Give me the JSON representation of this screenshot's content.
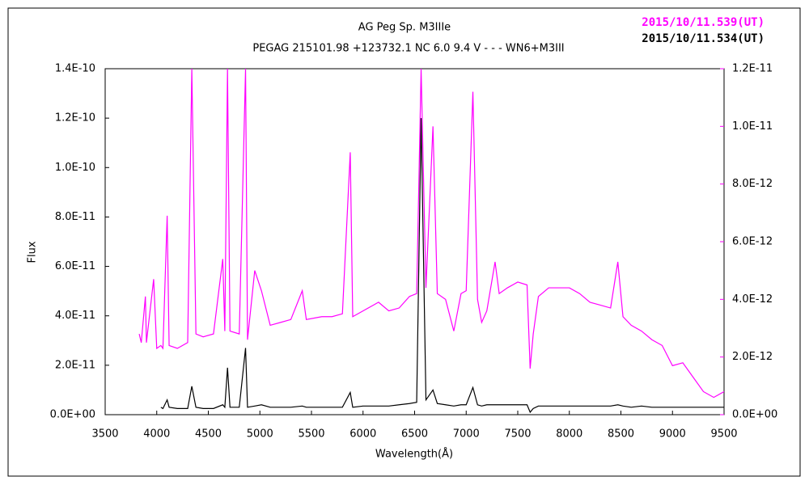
{
  "chart_data": {
    "type": "line",
    "title": "AG Peg    Sp. M3IIIe",
    "subtitle": "PEGAG 215101.98 +123732.1 NC 6.0 9.4 V - - - WN6+M3III",
    "x_label": "Wavelength(Å)",
    "y_label": "Flux",
    "xlim": [
      3500,
      9500
    ],
    "xticks": [
      3500,
      4000,
      4500,
      5000,
      5500,
      6000,
      6500,
      7000,
      7500,
      8000,
      8500,
      9000,
      9500
    ],
    "ylim": [
      0,
      1.4e-10
    ],
    "yticks": [
      {
        "value": 0,
        "label": "0.0E+00"
      },
      {
        "value": 2e-11,
        "label": "2.0E-11"
      },
      {
        "value": 4e-11,
        "label": "4.0E-11"
      },
      {
        "value": 6e-11,
        "label": "6.0E-11"
      },
      {
        "value": 8e-11,
        "label": "8.0E-11"
      },
      {
        "value": 1e-10,
        "label": "1.0E-10"
      },
      {
        "value": 1.2e-10,
        "label": "1.2E-10"
      },
      {
        "value": 1.4e-10,
        "label": "1.4E-10"
      }
    ],
    "y2lim": [
      0,
      1.2e-11
    ],
    "y2ticks": [
      {
        "value": 0,
        "label": "0.0E+00"
      },
      {
        "value": 2e-12,
        "label": "2.0E-12"
      },
      {
        "value": 4e-12,
        "label": "4.0E-12"
      },
      {
        "value": 6e-12,
        "label": "6.0E-12"
      },
      {
        "value": 8e-12,
        "label": "8.0E-12"
      },
      {
        "value": 1e-11,
        "label": "1.0E-11"
      },
      {
        "value": 1.2e-11,
        "label": "1.2E-11"
      }
    ],
    "y2_color": "#ff00ff",
    "x": [
      3830,
      3850,
      3890,
      3900,
      3970,
      4000,
      4040,
      4060,
      4101,
      4120,
      4200,
      4300,
      4340,
      4380,
      4450,
      4550,
      4640,
      4660,
      4686,
      4710,
      4800,
      4861,
      4880,
      4950,
      5015,
      5100,
      5200,
      5300,
      5411,
      5450,
      5600,
      5700,
      5800,
      5876,
      5900,
      6000,
      6100,
      6150,
      6250,
      6350,
      6450,
      6520,
      6563,
      6610,
      6678,
      6720,
      6800,
      6880,
      6950,
      7000,
      7065,
      7110,
      7150,
      7200,
      7280,
      7320,
      7400,
      7500,
      7590,
      7620,
      7650,
      7700,
      7800,
      7900,
      8000,
      8100,
      8200,
      8300,
      8400,
      8470,
      8520,
      8600,
      8700,
      8800,
      8900,
      9000,
      9100,
      9200,
      9300,
      9400,
      9500
    ],
    "series": [
      {
        "name": "2015/10/11.539(UT)",
        "color": "#ff00ff",
        "axis": "y2",
        "values": [
          2.8e-12,
          2.5e-12,
          4.1e-12,
          2.5e-12,
          4.7e-12,
          2.3e-12,
          2.4e-12,
          2.3e-12,
          6.9e-12,
          2.4e-12,
          2.3e-12,
          2.5e-12,
          1.2e-11,
          2.8e-12,
          2.7e-12,
          2.8e-12,
          5.4e-12,
          2.9e-12,
          1.2e-11,
          2.9e-12,
          2.8e-12,
          1.2e-11,
          2.6e-12,
          5e-12,
          4.3e-12,
          3.1e-12,
          3.2e-12,
          3.3e-12,
          4.3e-12,
          3.3e-12,
          3.4e-12,
          3.4e-12,
          3.5e-12,
          9.1e-12,
          3.4e-12,
          3.6e-12,
          3.8e-12,
          3.9e-12,
          3.6e-12,
          3.7e-12,
          4.1e-12,
          4.2e-12,
          1.2e-11,
          4.4e-12,
          1e-11,
          4.2e-12,
          4e-12,
          2.9e-12,
          4.2e-12,
          4.3e-12,
          1.12e-11,
          4e-12,
          3.2e-12,
          3.6e-12,
          5.3e-12,
          4.2e-12,
          4.4e-12,
          4.6e-12,
          4.5e-12,
          1.6e-12,
          2.8e-12,
          4.1e-12,
          4.4e-12,
          4.4e-12,
          4.4e-12,
          4.2e-12,
          3.9e-12,
          3.8e-12,
          3.7e-12,
          5.3e-12,
          3.4e-12,
          3.1e-12,
          2.9e-12,
          2.6e-12,
          2.4e-12,
          1.7e-12,
          1.8e-12,
          1.3e-12,
          8e-13,
          6e-13,
          8e-13
        ]
      },
      {
        "name": "2015/10/11.534(UT)",
        "color": "#000000",
        "values": [
          null,
          null,
          null,
          null,
          null,
          null,
          3e-12,
          2.5e-12,
          6e-12,
          3e-12,
          2.5e-12,
          2.5e-12,
          1.15e-11,
          3e-12,
          2.5e-12,
          2.5e-12,
          4e-12,
          3e-12,
          1.9e-11,
          3e-12,
          3e-12,
          2.7e-11,
          3e-12,
          3.5e-12,
          4e-12,
          3e-12,
          3e-12,
          3e-12,
          3.5e-12,
          3e-12,
          3e-12,
          3e-12,
          3e-12,
          9e-12,
          3e-12,
          3.5e-12,
          3.5e-12,
          3.5e-12,
          3.5e-12,
          4e-12,
          4.5e-12,
          5e-12,
          1.2e-10,
          6e-12,
          1e-11,
          4.5e-12,
          4e-12,
          3.5e-12,
          4e-12,
          4e-12,
          1.1e-11,
          4e-12,
          3.5e-12,
          4e-12,
          4e-12,
          4e-12,
          4e-12,
          4e-12,
          4e-12,
          1e-12,
          2.5e-12,
          3.5e-12,
          3.5e-12,
          3.5e-12,
          3.5e-12,
          3.5e-12,
          3.5e-12,
          3.5e-12,
          3.5e-12,
          4e-12,
          3.5e-12,
          3e-12,
          3.5e-12,
          3e-12,
          3e-12,
          3e-12,
          3e-12,
          3e-12,
          3e-12,
          3e-12,
          3e-12
        ]
      }
    ]
  }
}
